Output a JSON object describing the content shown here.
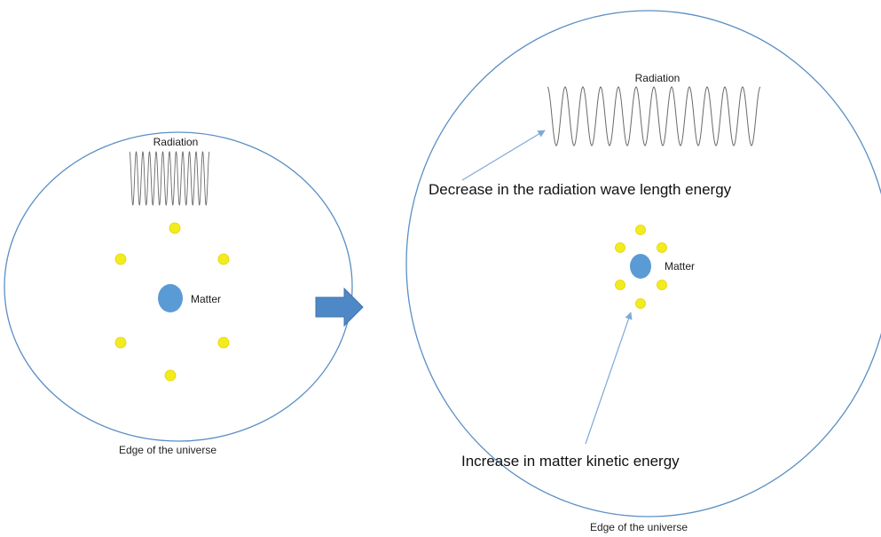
{
  "colors": {
    "boundary": "#5b8fc4",
    "matter": "#5b9bd5",
    "particle": "#f2ec1f",
    "particle_stroke": "#e4d200",
    "wave": "#6a6a6a",
    "transition_arrow": "#4f88c6",
    "annotation_arrow": "#7fa9d6"
  },
  "left_panel": {
    "radiation_label": "Radiation",
    "matter_label": "Matter",
    "edge_label": "Edge of the universe"
  },
  "right_panel": {
    "radiation_label": "Radiation",
    "matter_label": "Matter",
    "edge_label": "Edge of the universe",
    "radiation_annotation": "Decrease in the radiation wave length energy",
    "matter_annotation": "Increase in matter kinetic energy"
  },
  "icons": {
    "transition": "right-arrow-icon"
  }
}
